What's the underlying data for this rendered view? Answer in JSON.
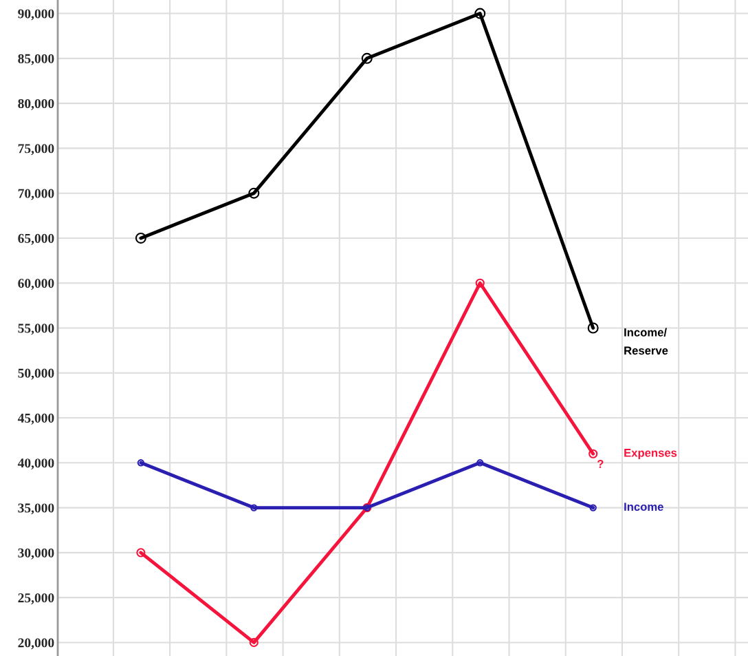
{
  "chart_data": {
    "type": "line",
    "categories": [
      null,
      null,
      null,
      null,
      null
    ],
    "series": [
      {
        "name": "Income/\nReserve",
        "color": "#000000",
        "values": [
          65000,
          70000,
          85000,
          90000,
          55000
        ]
      },
      {
        "name": "Expenses",
        "color": "#f5143c",
        "values": [
          30000,
          20000,
          35000,
          60000,
          41000
        ]
      },
      {
        "name": "Income",
        "color": "#2a1fb0",
        "values": [
          40000,
          35000,
          35000,
          40000,
          35000
        ]
      }
    ],
    "annotations": [
      "?"
    ],
    "ylim": [
      18500,
      91500
    ],
    "yticks": [
      {
        "value": 20000,
        "label": "20,000"
      },
      {
        "value": 25000,
        "label": "25,000"
      },
      {
        "value": 30000,
        "label": "30,000"
      },
      {
        "value": 35000,
        "label": "35,000"
      },
      {
        "value": 40000,
        "label": "40,000"
      },
      {
        "value": 45000,
        "label": "45,000"
      },
      {
        "value": 50000,
        "label": "50,000"
      },
      {
        "value": 55000,
        "label": "55,000"
      },
      {
        "value": 60000,
        "label": "60,000"
      },
      {
        "value": 65000,
        "label": "65,000"
      },
      {
        "value": 70000,
        "label": "70,000"
      },
      {
        "value": 75000,
        "label": "75,000"
      },
      {
        "value": 80000,
        "label": "80,000"
      },
      {
        "value": 85000,
        "label": "85,000"
      },
      {
        "value": 90000,
        "label": "90,000"
      }
    ],
    "grid": true,
    "marker": "circle",
    "line_style": "solid",
    "tick_labels": "y"
  }
}
